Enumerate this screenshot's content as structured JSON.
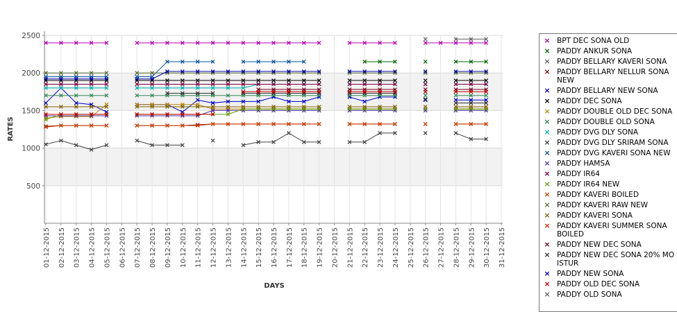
{
  "chart_data": {
    "type": "line",
    "xlabel": "DAYS",
    "ylabel": "RATES",
    "ylim": [
      0,
      2500
    ],
    "yticks": [
      500,
      1000,
      1500,
      2000,
      2500
    ],
    "grid": true,
    "legend_position": "right",
    "categories": [
      "01-12-2015",
      "02-12-2015",
      "03-12-2015",
      "04-12-2015",
      "05-12-2015",
      "06-12-2015",
      "07-12-2015",
      "08-12-2015",
      "09-12-2015",
      "10-12-2015",
      "11-12-2015",
      "12-12-2015",
      "13-12-2015",
      "14-12-2015",
      "15-12-2015",
      "16-12-2015",
      "17-12-2015",
      "18-12-2015",
      "19-12-2015",
      "20-12-2015",
      "21-12-2015",
      "22-12-2015",
      "23-12-2015",
      "24-12-2015",
      "25-12-2015",
      "26-12-2015",
      "27-12-2015",
      "28-12-2015",
      "29-12-2015",
      "30-12-2015",
      "31-12-2015"
    ],
    "series": [
      {
        "name": "BPT DEC SONA OLD",
        "color": "#b000b0",
        "values": [
          2400,
          2400,
          2400,
          2400,
          2400,
          null,
          2400,
          2400,
          2400,
          2400,
          2400,
          2400,
          2400,
          2400,
          2400,
          2400,
          2400,
          2400,
          2400,
          null,
          2400,
          2400,
          2400,
          2400,
          null,
          2400,
          2400,
          2400,
          2400,
          2400,
          null
        ]
      },
      {
        "name": "PADDY ANKUR SONA",
        "color": "#006400",
        "values": [
          null,
          null,
          null,
          null,
          null,
          null,
          null,
          null,
          null,
          null,
          null,
          null,
          null,
          null,
          null,
          null,
          null,
          null,
          null,
          null,
          null,
          2150,
          2150,
          2150,
          null,
          2150,
          null,
          2150,
          2150,
          2150,
          null
        ]
      },
      {
        "name": "PADDY BELLARY KAVERI SONA",
        "color": "#606060",
        "values": [
          null,
          null,
          null,
          null,
          null,
          null,
          null,
          null,
          null,
          null,
          null,
          null,
          null,
          null,
          null,
          null,
          null,
          null,
          null,
          null,
          null,
          null,
          null,
          null,
          null,
          2450,
          null,
          2450,
          2450,
          2450,
          null
        ]
      },
      {
        "name": "PADDY BELLARY NELLUR SONA\n NEW",
        "color": "#8b0000",
        "values": [
          1290,
          1300,
          1300,
          1300,
          1300,
          null,
          1300,
          1300,
          1300,
          1300,
          1310,
          1320,
          1320,
          1320,
          1320,
          1320,
          1320,
          1320,
          1320,
          null,
          1320,
          1320,
          1320,
          1320,
          null,
          1320,
          null,
          1320,
          1320,
          1320,
          null
        ]
      },
      {
        "name": "PADDY BELLARY NEW SONA",
        "color": "#0000c0",
        "values": [
          1600,
          1800,
          1600,
          1580,
          1480,
          null,
          1580,
          1580,
          1580,
          1480,
          1640,
          1600,
          1620,
          1620,
          1620,
          1680,
          1620,
          1620,
          1680,
          null,
          1680,
          1620,
          1680,
          1680,
          null,
          1640,
          null,
          1640,
          1640,
          1640,
          null
        ]
      },
      {
        "name": "PADDY DEC SONA",
        "color": "#000000",
        "values": [
          1900,
          1900,
          1900,
          1900,
          1900,
          null,
          1900,
          1900,
          1900,
          1900,
          1900,
          1900,
          1900,
          1900,
          1900,
          1900,
          1900,
          1900,
          1900,
          null,
          1900,
          1900,
          1900,
          1900,
          null,
          1900,
          null,
          1900,
          1900,
          1900,
          null
        ]
      },
      {
        "name": "PADDY DOUBLE OLD DEC SONA",
        "color": "#b8860b",
        "values": [
          1400,
          1420,
          1420,
          1420,
          1580,
          null,
          1580,
          1580,
          1580,
          1580,
          1580,
          1520,
          1520,
          1520,
          1520,
          1520,
          1520,
          1520,
          1520,
          null,
          1520,
          1520,
          1520,
          1520,
          null,
          1520,
          null,
          1520,
          1520,
          1520,
          null
        ]
      },
      {
        "name": "PADDY DOUBLE OLD SONA",
        "color": "#2e8b57",
        "values": [
          1700,
          1700,
          1700,
          1700,
          1700,
          null,
          1700,
          1700,
          1700,
          1700,
          1700,
          1700,
          1700,
          1700,
          1700,
          1700,
          1700,
          1700,
          1700,
          null,
          1700,
          1700,
          1700,
          1700,
          null,
          1700,
          null,
          1700,
          1700,
          1700,
          null
        ]
      },
      {
        "name": "PADDY DVG DLY SONA",
        "color": "#00aaaa",
        "values": [
          1800,
          1800,
          1800,
          1800,
          1800,
          null,
          1800,
          1800,
          1800,
          1800,
          1800,
          1800,
          1800,
          1800,
          1850,
          1850,
          1850,
          1850,
          1850,
          null,
          1850,
          1850,
          1850,
          1850,
          null,
          1850,
          null,
          1850,
          1850,
          1850,
          null
        ]
      },
      {
        "name": "PADDY DVG DLY SRIRAM SONA",
        "color": "#404040",
        "values": [
          1050,
          1100,
          1040,
          980,
          1040,
          null,
          1100,
          1040,
          1040,
          1040,
          null,
          1100,
          null,
          1040,
          1080,
          1080,
          1200,
          1080,
          1080,
          null,
          1080,
          1080,
          1200,
          1200,
          null,
          1200,
          null,
          1200,
          1120,
          1120,
          null
        ]
      },
      {
        "name": "PADDY DVG KAVERI SONA NEW",
        "color": "#0050a0",
        "values": [
          1950,
          1950,
          1950,
          1950,
          1950,
          null,
          1950,
          1950,
          2150,
          2150,
          2150,
          2150,
          null,
          2150,
          2150,
          2150,
          2150,
          2150,
          null,
          null,
          null,
          null,
          null,
          null,
          null,
          null,
          null,
          null,
          null,
          null,
          null
        ]
      },
      {
        "name": "PADDY HAMSA",
        "color": "#5030a0",
        "values": [
          1430,
          1430,
          1430,
          1430,
          1430,
          null,
          1430,
          1430,
          1430,
          1430,
          1430,
          1500,
          1500,
          1500,
          1500,
          1500,
          1500,
          1500,
          1500,
          null,
          1500,
          1500,
          1500,
          1500,
          null,
          1500,
          null,
          1500,
          1500,
          1500,
          null
        ]
      },
      {
        "name": "PADDY IR64",
        "color": "#800040",
        "values": [
          1850,
          1850,
          1850,
          1850,
          1850,
          null,
          1850,
          1850,
          1850,
          1850,
          1850,
          1850,
          1850,
          1850,
          1850,
          1850,
          1850,
          1850,
          1850,
          null,
          1850,
          1850,
          1850,
          1850,
          null,
          1850,
          null,
          1850,
          1850,
          1850,
          null
        ]
      },
      {
        "name": "PADDY IR64 NEW",
        "color": "#669900",
        "values": [
          1380,
          1450,
          1450,
          1450,
          1450,
          null,
          1450,
          1450,
          1450,
          1450,
          1450,
          1450,
          1450,
          1520,
          1520,
          1520,
          1520,
          1520,
          1520,
          null,
          1520,
          1520,
          1520,
          1520,
          null,
          1520,
          null,
          1520,
          1520,
          1520,
          null
        ]
      },
      {
        "name": "PADDY KAVERI BOILED",
        "color": "#cc4400",
        "values": [
          1280,
          1300,
          1300,
          1300,
          1300,
          null,
          1300,
          1300,
          1300,
          1300,
          1300,
          1320,
          1320,
          1320,
          1320,
          1320,
          1320,
          1320,
          1320,
          null,
          1320,
          1320,
          1320,
          1320,
          null,
          1320,
          null,
          1320,
          1320,
          1320,
          null
        ]
      },
      {
        "name": "PADDY KAVERI RAW NEW",
        "color": "#556b2f",
        "values": [
          2000,
          2000,
          2000,
          2000,
          2000,
          null,
          2000,
          2000,
          2000,
          2000,
          2000,
          2000,
          2000,
          2000,
          2000,
          2000,
          2000,
          2000,
          2000,
          null,
          2000,
          2000,
          2000,
          2000,
          null,
          2000,
          null,
          2000,
          2000,
          2000,
          null
        ]
      },
      {
        "name": "PADDY KAVERI SONA",
        "color": "#806000",
        "values": [
          1550,
          1550,
          1550,
          1550,
          1550,
          null,
          1550,
          1550,
          1550,
          1550,
          1550,
          1550,
          1550,
          1550,
          1550,
          1550,
          1550,
          1550,
          1550,
          null,
          1550,
          1550,
          1550,
          1550,
          null,
          1550,
          null,
          1550,
          1550,
          1550,
          null
        ]
      },
      {
        "name": "PADDY KAVERI SUMMER SONA\nBOILED",
        "color": "#d03000",
        "values": [
          null,
          null,
          null,
          null,
          null,
          null,
          null,
          null,
          null,
          null,
          null,
          null,
          null,
          null,
          null,
          null,
          null,
          null,
          null,
          null,
          null,
          null,
          null,
          null,
          null,
          null,
          null,
          null,
          null,
          null,
          null
        ]
      },
      {
        "name": "PADDY NEW DEC SONA",
        "color": "#700020",
        "values": [
          null,
          null,
          null,
          null,
          null,
          null,
          null,
          null,
          null,
          null,
          null,
          null,
          null,
          null,
          1780,
          1780,
          1780,
          1780,
          1780,
          null,
          1780,
          1780,
          1780,
          1780,
          null,
          1780,
          null,
          1780,
          1780,
          1780,
          null
        ]
      },
      {
        "name": "PADDY NEW DEC SONA 20% MO\nISTUR",
        "color": "#303030",
        "values": [
          null,
          null,
          null,
          null,
          null,
          null,
          null,
          null,
          1730,
          1730,
          1730,
          1730,
          null,
          1730,
          1730,
          1730,
          1730,
          1730,
          1730,
          null,
          1730,
          1730,
          1730,
          1730,
          null,
          1650,
          null,
          1600,
          1600,
          1600,
          null
        ]
      },
      {
        "name": "PADDY NEW SONA",
        "color": "#0000a0",
        "values": [
          1920,
          1920,
          1920,
          1920,
          1920,
          null,
          1920,
          1920,
          2020,
          2020,
          2020,
          2020,
          2020,
          2020,
          2020,
          2020,
          2020,
          2020,
          2020,
          null,
          2020,
          2020,
          2020,
          2020,
          null,
          2020,
          null,
          2020,
          2020,
          2020,
          null
        ]
      },
      {
        "name": "PADDY OLD DEC SONA",
        "color": "#c00000",
        "values": [
          1450,
          1450,
          1450,
          1450,
          1450,
          null,
          1450,
          1450,
          1450,
          1450,
          1450,
          1450,
          null,
          1750,
          1750,
          1750,
          1750,
          1750,
          1750,
          null,
          1750,
          1750,
          1750,
          1750,
          null,
          1750,
          null,
          1750,
          1750,
          1750,
          null
        ]
      },
      {
        "name": "PADDY OLD SONA",
        "color": "#606060",
        "values": [
          null,
          null,
          null,
          null,
          null,
          null,
          null,
          null,
          null,
          null,
          null,
          null,
          null,
          null,
          null,
          null,
          null,
          null,
          null,
          null,
          null,
          null,
          null,
          null,
          null,
          null,
          null,
          null,
          null,
          null,
          null
        ]
      }
    ]
  }
}
